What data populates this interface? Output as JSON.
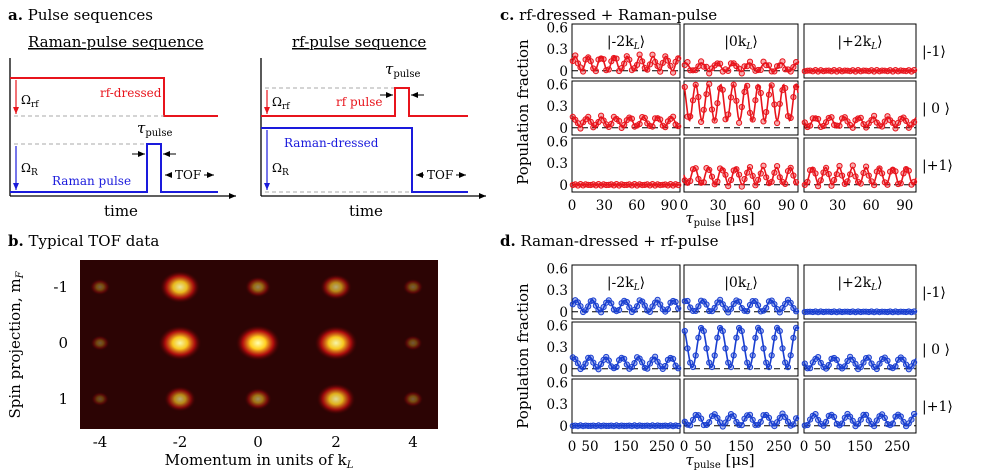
{
  "panel_a": {
    "letter": "a.",
    "title": "Pulse sequences",
    "raman": {
      "title": "Raman-pulse sequence",
      "rf_label": "rf-dressed",
      "raman_label": "Raman pulse",
      "omega_rf": "Ω",
      "omega_rf_sub": "rf",
      "omega_r": "Ω",
      "omega_r_sub": "R",
      "tau": "τ",
      "tau_sub": "pulse",
      "tof": "TOF",
      "time": "time"
    },
    "rf": {
      "title": "rf-pulse sequence",
      "rf_label": "rf pulse",
      "raman_label": "Raman-dressed",
      "omega_rf": "Ω",
      "omega_rf_sub": "rf",
      "omega_r": "Ω",
      "omega_r_sub": "R",
      "tau": "τ",
      "tau_sub": "pulse",
      "tof": "TOF",
      "time": "time"
    },
    "colors": {
      "rf": "#e8141c",
      "raman": "#1a1adc"
    }
  },
  "panel_b": {
    "letter": "b.",
    "title": "Typical TOF data",
    "ylabel": "Spin projection, m",
    "ylabel_sub": "F",
    "xlabel": "Momentum in units of k",
    "xlabel_sub": "L",
    "xticks": [
      "-4",
      "-2",
      "0",
      "2",
      "4"
    ],
    "yticks": [
      "-1",
      "0",
      "1"
    ],
    "spot_brightness": [
      [
        0.15,
        0.85,
        0.35,
        0.55,
        0.15
      ],
      [
        0.1,
        0.95,
        1.0,
        0.95,
        0.1
      ],
      [
        0.05,
        0.55,
        0.4,
        0.8,
        0.15
      ]
    ]
  },
  "panel_c": {
    "letter": "c.",
    "title": "rf-dressed + Raman-pulse",
    "ylabel": "Population fraction",
    "xlabel": "τ",
    "xlabel_sub": "pulse",
    "xlabel_unit": " [μs]",
    "col_labels": [
      "|-2k",
      "|0k",
      "|+2k"
    ],
    "col_sub": "L",
    "row_labels": [
      "|-1⟩",
      "| 0 ⟩",
      "|+1⟩"
    ],
    "yticks": [
      "0.6",
      "0.3",
      "0"
    ],
    "xticks": [
      "0",
      "30",
      "60",
      "90"
    ],
    "color": "#e8141c"
  },
  "panel_d": {
    "letter": "d.",
    "title": "Raman-dressed + rf-pulse",
    "ylabel": "Population fraction",
    "xlabel": "τ",
    "xlabel_sub": "pulse",
    "xlabel_unit": " [μs]",
    "col_labels": [
      "|-2k",
      "|0k",
      "|+2k"
    ],
    "col_sub": "L",
    "row_labels": [
      "|-1⟩",
      "| 0 ⟩",
      "|+1⟩"
    ],
    "yticks": [
      "0.6",
      "0.3",
      "0"
    ],
    "xticks": [
      "0",
      "50",
      "150",
      "250"
    ],
    "color": "#1a3fd0"
  },
  "chart_data": [
    {
      "type": "line",
      "panel": "c",
      "xlim": [
        0,
        100
      ],
      "ylim": [
        -0.1,
        0.65
      ],
      "grid": [
        [
          {
            "mean": 0.1,
            "amp": 0.1,
            "period": 12,
            "noise": 0.03
          },
          {
            "mean": 0.05,
            "amp": 0.06,
            "period": 14,
            "noise": 0.03
          },
          {
            "mean": 0.0,
            "amp": 0.0,
            "period": 10,
            "noise": 0.01
          }
        ],
        [
          {
            "mean": 0.08,
            "amp": 0.07,
            "period": 13,
            "noise": 0.02
          },
          {
            "mean": 0.35,
            "amp": 0.25,
            "period": 11,
            "noise": 0.05
          },
          {
            "mean": 0.08,
            "amp": 0.07,
            "period": 13,
            "noise": 0.02
          }
        ],
        [
          {
            "mean": 0.0,
            "amp": 0.0,
            "period": 10,
            "noise": 0.01
          },
          {
            "mean": 0.12,
            "amp": 0.12,
            "period": 12,
            "noise": 0.03
          },
          {
            "mean": 0.12,
            "amp": 0.12,
            "period": 12,
            "noise": 0.03
          }
        ]
      ]
    },
    {
      "type": "line",
      "panel": "d",
      "xlim": [
        0,
        300
      ],
      "ylim": [
        -0.1,
        0.65
      ],
      "grid": [
        [
          {
            "mean": 0.08,
            "amp": 0.08,
            "period": 45,
            "noise": 0.01
          },
          {
            "mean": 0.08,
            "amp": 0.08,
            "period": 45,
            "noise": 0.01
          },
          {
            "mean": 0.0,
            "amp": 0.0,
            "period": 40,
            "noise": 0.005
          }
        ],
        [
          {
            "mean": 0.08,
            "amp": 0.08,
            "period": 45,
            "noise": 0.01
          },
          {
            "mean": 0.3,
            "amp": 0.28,
            "period": 50,
            "noise": 0.01
          },
          {
            "mean": 0.08,
            "amp": 0.08,
            "period": 45,
            "noise": 0.01
          }
        ],
        [
          {
            "mean": 0.0,
            "amp": 0.0,
            "period": 40,
            "noise": 0.005
          },
          {
            "mean": 0.08,
            "amp": 0.08,
            "period": 45,
            "noise": 0.01
          },
          {
            "mean": 0.08,
            "amp": 0.08,
            "period": 45,
            "noise": 0.01
          }
        ]
      ]
    }
  ]
}
